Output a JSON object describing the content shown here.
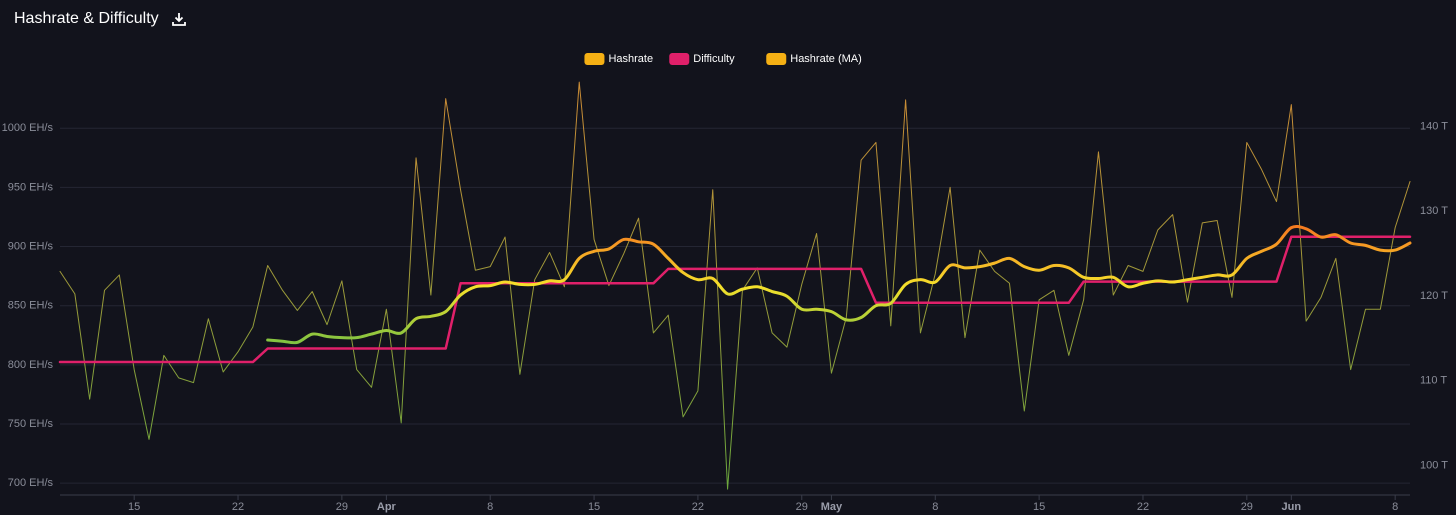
{
  "chart_data": {
    "type": "line",
    "title": "Hashrate & Difficulty",
    "x": [
      "Mar 10",
      "Mar 11",
      "Mar 12",
      "Mar 13",
      "Mar 14",
      "Mar 15",
      "Mar 16",
      "Mar 17",
      "Mar 18",
      "Mar 19",
      "Mar 20",
      "Mar 21",
      "Mar 22",
      "Mar 23",
      "Mar 24",
      "Mar 25",
      "Mar 26",
      "Mar 27",
      "Mar 28",
      "Mar 29",
      "Mar 30",
      "Mar 31",
      "Apr 1",
      "Apr 2",
      "Apr 3",
      "Apr 4",
      "Apr 5",
      "Apr 6",
      "Apr 7",
      "Apr 8",
      "Apr 9",
      "Apr 10",
      "Apr 11",
      "Apr 12",
      "Apr 13",
      "Apr 14",
      "Apr 15",
      "Apr 16",
      "Apr 17",
      "Apr 18",
      "Apr 19",
      "Apr 20",
      "Apr 21",
      "Apr 22",
      "Apr 23",
      "Apr 24",
      "Apr 25",
      "Apr 26",
      "Apr 27",
      "Apr 28",
      "Apr 29",
      "Apr 30",
      "May 1",
      "May 2",
      "May 3",
      "May 4",
      "May 5",
      "May 6",
      "May 7",
      "May 8",
      "May 9",
      "May 10",
      "May 11",
      "May 12",
      "May 13",
      "May 14",
      "May 15",
      "May 16",
      "May 17",
      "May 18",
      "May 19",
      "May 20",
      "May 21",
      "May 22",
      "May 23",
      "May 24",
      "May 25",
      "May 26",
      "May 27",
      "May 28",
      "May 29",
      "May 30",
      "May 31",
      "Jun 1",
      "Jun 2",
      "Jun 3",
      "Jun 4",
      "Jun 5",
      "Jun 6",
      "Jun 7",
      "Jun 8",
      "Jun 9"
    ],
    "series": [
      {
        "name": "Hashrate",
        "color": "#f5b014",
        "gradient": [
          "#7cc142",
          "#e8a13a"
        ],
        "values": [
          879,
          860,
          771,
          863,
          876,
          796,
          737,
          808,
          789,
          785,
          839,
          794,
          811,
          832,
          884,
          863,
          846,
          862,
          834,
          871,
          796,
          781,
          847,
          751,
          975,
          859,
          1025,
          948,
          880,
          883,
          908,
          792,
          872,
          895,
          866,
          1039,
          906,
          867,
          894,
          924,
          827,
          842,
          756,
          778,
          948,
          695,
          863,
          882,
          827,
          815,
          868,
          911,
          793,
          840,
          973,
          988,
          833,
          1024,
          827,
          877,
          950,
          823,
          897,
          879,
          869,
          761,
          855,
          863,
          808,
          855,
          980,
          859,
          884,
          879,
          914,
          927,
          853,
          920,
          922,
          857,
          988,
          965,
          938,
          1020,
          837,
          857,
          890,
          796,
          847,
          847,
          916,
          955
        ]
      },
      {
        "name": "Difficulty",
        "color": "#e0206a",
        "axis": "y2",
        "values": [
          112.2,
          112.2,
          112.2,
          112.2,
          112.2,
          112.2,
          112.2,
          112.2,
          112.2,
          112.2,
          112.2,
          112.2,
          112.2,
          112.2,
          113.8,
          113.8,
          113.8,
          113.8,
          113.8,
          113.8,
          113.8,
          113.8,
          113.8,
          113.8,
          113.8,
          113.8,
          113.8,
          121.5,
          121.5,
          121.5,
          121.5,
          121.5,
          121.5,
          121.5,
          121.5,
          121.5,
          121.5,
          121.5,
          121.5,
          121.5,
          121.5,
          123.2,
          123.2,
          123.2,
          123.2,
          123.2,
          123.2,
          123.2,
          123.2,
          123.2,
          123.2,
          123.2,
          123.2,
          123.2,
          123.2,
          119.2,
          119.2,
          119.2,
          119.2,
          119.2,
          119.2,
          119.2,
          119.2,
          119.2,
          119.2,
          119.2,
          119.2,
          119.2,
          119.2,
          121.7,
          121.7,
          121.7,
          121.7,
          121.7,
          121.7,
          121.7,
          121.7,
          121.7,
          121.7,
          121.7,
          121.7,
          121.7,
          121.7,
          127.0,
          127.0,
          127.0,
          127.0,
          127.0,
          127.0,
          127.0,
          127.0,
          127.0
        ]
      },
      {
        "name": "Hashrate (MA)",
        "color": "#f5b014",
        "gradient": [
          "#7cc142",
          "#f5e12b",
          "#f57c20"
        ],
        "values": [
          null,
          null,
          null,
          null,
          null,
          null,
          null,
          null,
          null,
          null,
          null,
          null,
          null,
          null,
          821,
          820,
          819,
          826,
          824,
          823,
          823,
          826,
          829,
          827,
          839,
          841,
          845,
          859,
          866,
          867,
          870,
          868,
          868,
          871,
          872,
          890,
          896,
          898,
          906,
          904,
          902,
          890,
          878,
          872,
          873,
          860,
          864,
          866,
          862,
          858,
          847,
          847,
          845,
          838,
          840,
          850,
          852,
          868,
          872,
          870,
          884,
          882,
          883,
          886,
          890,
          883,
          880,
          884,
          882,
          874,
          873,
          874,
          866,
          869,
          871,
          870,
          872,
          874,
          876,
          876,
          890,
          896,
          902,
          916,
          915,
          908,
          910,
          903,
          901,
          897,
          897,
          903
        ]
      }
    ],
    "ylim": [
      690,
      1045
    ],
    "yticks": [
      {
        "value": 700,
        "label": "700 EH/s"
      },
      {
        "value": 750,
        "label": "750 EH/s"
      },
      {
        "value": 800,
        "label": "800 EH/s"
      },
      {
        "value": 850,
        "label": "850 EH/s"
      },
      {
        "value": 900,
        "label": "900 EH/s"
      },
      {
        "value": 950,
        "label": "950 EH/s"
      },
      {
        "value": 1000,
        "label": "1000 EH/s"
      }
    ],
    "y2lim": [
      96.5,
      146.1
    ],
    "y2ticks": [
      {
        "value": 100,
        "label": "100 T"
      },
      {
        "value": 110,
        "label": "110 T"
      },
      {
        "value": 120,
        "label": "120 T"
      },
      {
        "value": 130,
        "label": "130 T"
      },
      {
        "value": 140,
        "label": "140 T"
      }
    ],
    "xticks": [
      {
        "value": "Mar 15",
        "label": "15"
      },
      {
        "value": "Mar 22",
        "label": "22"
      },
      {
        "value": "Mar 29",
        "label": "29"
      },
      {
        "value": "Apr 1",
        "label": "Apr"
      },
      {
        "value": "Apr 8",
        "label": "8"
      },
      {
        "value": "Apr 15",
        "label": "15"
      },
      {
        "value": "Apr 22",
        "label": "22"
      },
      {
        "value": "Apr 29",
        "label": "29"
      },
      {
        "value": "May 1",
        "label": "May"
      },
      {
        "value": "May 8",
        "label": "8"
      },
      {
        "value": "May 15",
        "label": "15"
      },
      {
        "value": "May 22",
        "label": "22"
      },
      {
        "value": "May 29",
        "label": "29"
      },
      {
        "value": "Jun 1",
        "label": "Jun"
      },
      {
        "value": "Jun 8",
        "label": "8"
      }
    ],
    "grid": true,
    "legend": "top"
  }
}
